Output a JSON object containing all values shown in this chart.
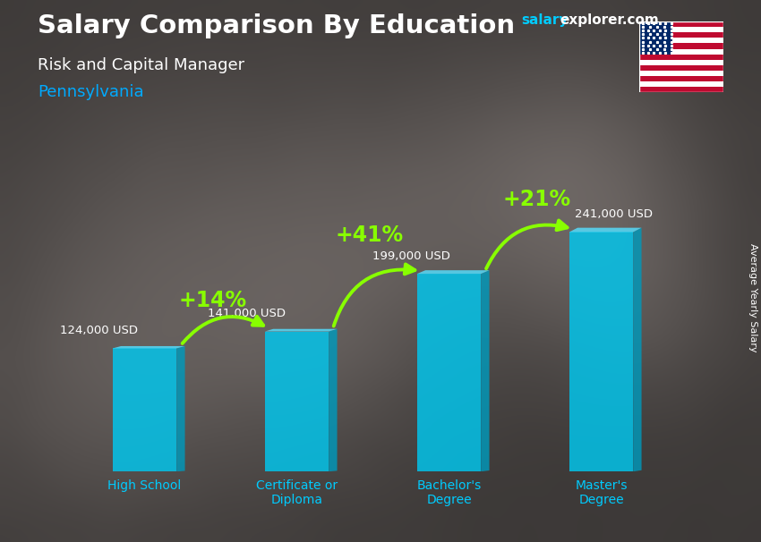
{
  "title_main": "Salary Comparison By Education",
  "title_sub": "Risk and Capital Manager",
  "title_loc": "Pennsylvania",
  "ylabel": "Average Yearly Salary",
  "categories": [
    "High School",
    "Certificate or\nDiploma",
    "Bachelor's\nDegree",
    "Master's\nDegree"
  ],
  "values": [
    124000,
    141000,
    199000,
    241000
  ],
  "value_labels": [
    "124,000 USD",
    "141,000 USD",
    "199,000 USD",
    "241,000 USD"
  ],
  "pct_labels": [
    "+14%",
    "+41%",
    "+21%"
  ],
  "bar_color_front": "#00c8f0",
  "bar_color_side": "#0099bb",
  "bar_color_top": "#55dfff",
  "bar_alpha": 0.82,
  "bg_color": "#3a3a4a",
  "title_color": "#ffffff",
  "subtitle_color": "#ffffff",
  "loc_color": "#00aaff",
  "value_label_color": "#ffffff",
  "pct_color": "#88ff00",
  "arrow_color": "#88ff00",
  "salary_color": "#00ccff",
  "explorer_color": "#ffffff",
  "ylim": [
    0,
    300000
  ],
  "figsize": [
    8.5,
    6.06
  ],
  "dpi": 100
}
